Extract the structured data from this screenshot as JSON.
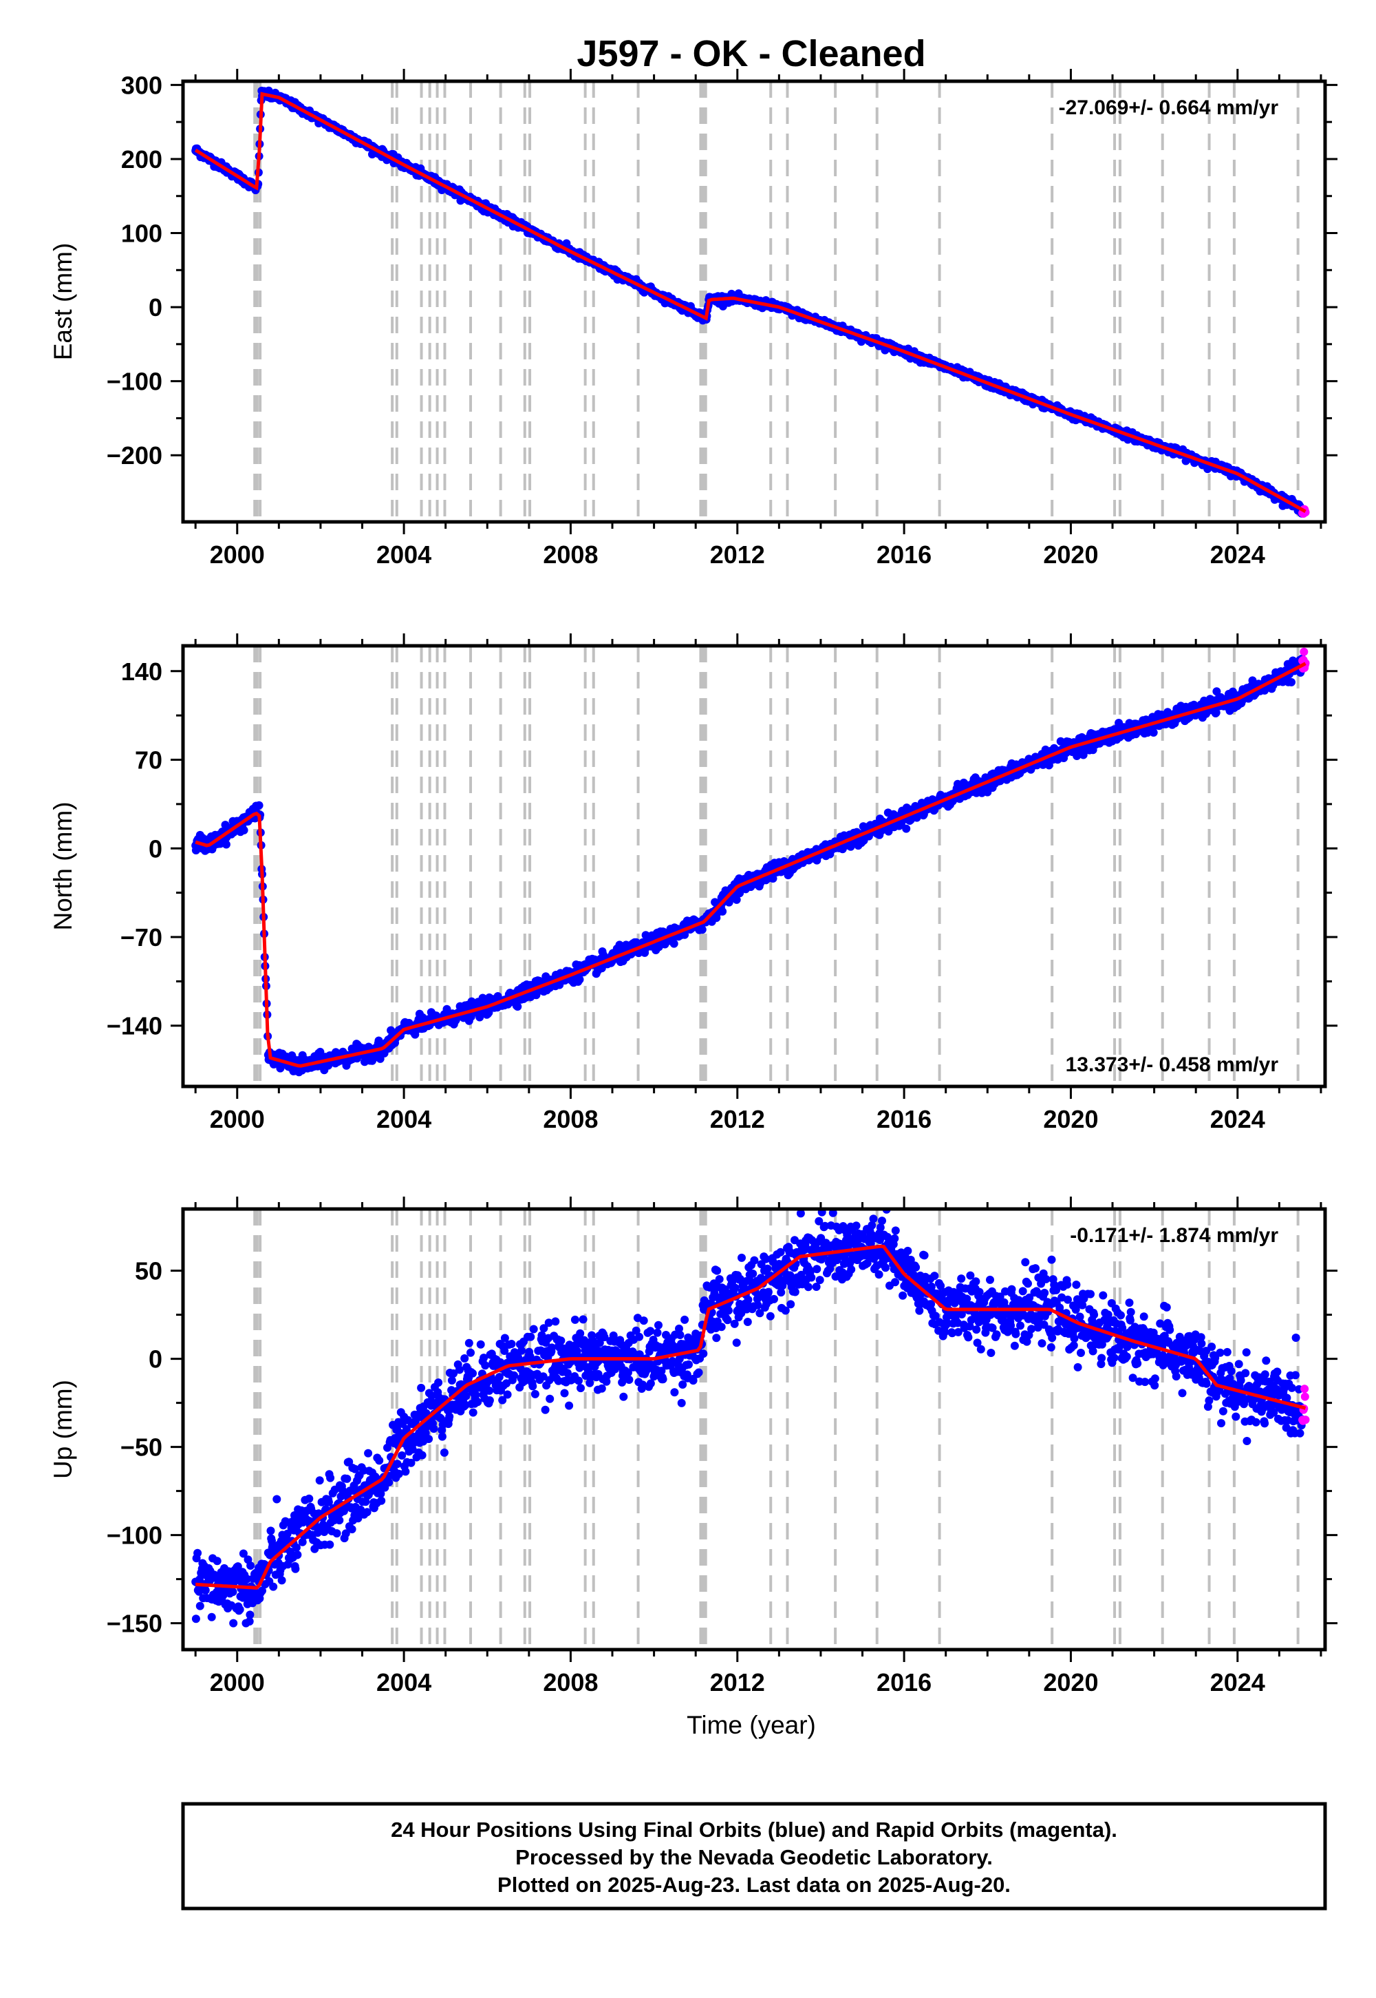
{
  "title": "J597  - OK - Cleaned",
  "x_axis_label": "Time (year)",
  "caption": {
    "line1": "24 Hour Positions Using Final Orbits (blue) and Rapid Orbits (magenta).",
    "line2": "Processed by the Nevada Geodetic Laboratory.",
    "line3": "Plotted on 2025-Aug-23. Last data on 2025-Aug-20."
  },
  "colors": {
    "final": "#0000ff",
    "rapid": "#ff00ff",
    "model": "#ff0000",
    "steps": "#c0c0c0"
  },
  "chart_data": [
    {
      "type": "scatter",
      "name": "east",
      "ylabel": "East (mm)",
      "rate": "-27.069+/- 0.664 mm/yr",
      "rate_position": "top-right",
      "xlim": [
        1998.7,
        2026.1
      ],
      "ylim": [
        -290,
        305
      ],
      "xticks": [
        2000,
        2004,
        2008,
        2012,
        2016,
        2020,
        2024
      ],
      "yticks": [
        -200,
        -100,
        0,
        100,
        200,
        300
      ],
      "x_start": 1999.0,
      "x_end": 2025.63,
      "rapid_start": 2025.55,
      "noise": 2.5,
      "trend": [
        [
          1999.0,
          212
        ],
        [
          2000.4,
          163
        ],
        [
          2000.5,
          160
        ],
        [
          2000.58,
          288
        ],
        [
          2001.0,
          283
        ],
        [
          2004.0,
          192
        ],
        [
          2008.0,
          75
        ],
        [
          2011.25,
          -15
        ],
        [
          2011.32,
          10
        ],
        [
          2011.9,
          12
        ],
        [
          2013.0,
          0
        ],
        [
          2016.0,
          -60
        ],
        [
          2020.0,
          -145
        ],
        [
          2024.0,
          -225
        ],
        [
          2025.63,
          -276
        ]
      ]
    },
    {
      "type": "scatter",
      "name": "north",
      "ylabel": "North (mm)",
      "rate": "13.373+/- 0.458 mm/yr",
      "rate_position": "bottom-right",
      "xlim": [
        1998.7,
        2026.1
      ],
      "ylim": [
        -188,
        160
      ],
      "xticks": [
        2000,
        2004,
        2008,
        2012,
        2016,
        2020,
        2024
      ],
      "yticks": [
        -140,
        -70,
        0,
        70,
        140
      ],
      "x_start": 1999.0,
      "x_end": 2025.63,
      "rapid_start": 2025.55,
      "noise": 3.0,
      "trend": [
        [
          1999.0,
          5
        ],
        [
          1999.3,
          2
        ],
        [
          2000.45,
          28
        ],
        [
          2000.55,
          25
        ],
        [
          2000.75,
          -165
        ],
        [
          2001.5,
          -172
        ],
        [
          2003.5,
          -158
        ],
        [
          2004.0,
          -143
        ],
        [
          2006.0,
          -125
        ],
        [
          2008.0,
          -100
        ],
        [
          2011.2,
          -58
        ],
        [
          2012.0,
          -30
        ],
        [
          2016.0,
          25
        ],
        [
          2020.0,
          80
        ],
        [
          2024.0,
          118
        ],
        [
          2025.63,
          146
        ]
      ]
    },
    {
      "type": "scatter",
      "name": "up",
      "ylabel": "Up (mm)",
      "rate": "-0.171+/- 1.874 mm/yr",
      "rate_position": "top-right",
      "xlim": [
        1998.7,
        2026.1
      ],
      "ylim": [
        -165,
        85
      ],
      "xticks": [
        2000,
        2004,
        2008,
        2012,
        2016,
        2020,
        2024
      ],
      "yticks": [
        -150,
        -100,
        -50,
        0,
        50
      ],
      "x_start": 1999.0,
      "x_end": 2025.63,
      "rapid_start": 2025.55,
      "noise": 9.0,
      "trend": [
        [
          1999.0,
          -128
        ],
        [
          2000.5,
          -130
        ],
        [
          2000.8,
          -115
        ],
        [
          2002.0,
          -90
        ],
        [
          2003.5,
          -68
        ],
        [
          2004.0,
          -45
        ],
        [
          2005.5,
          -15
        ],
        [
          2006.5,
          -4
        ],
        [
          2008.0,
          0
        ],
        [
          2010.0,
          0
        ],
        [
          2011.1,
          5
        ],
        [
          2011.3,
          28
        ],
        [
          2012.5,
          40
        ],
        [
          2013.5,
          58
        ],
        [
          2015.5,
          64
        ],
        [
          2016.0,
          48
        ],
        [
          2017.0,
          28
        ],
        [
          2019.5,
          28
        ],
        [
          2020.2,
          20
        ],
        [
          2021.5,
          10
        ],
        [
          2023.0,
          0
        ],
        [
          2023.5,
          -15
        ],
        [
          2025.63,
          -28
        ]
      ]
    }
  ],
  "step_epochs": [
    2000.42,
    2000.48,
    2000.55,
    2003.72,
    2003.83,
    2004.42,
    2004.62,
    2004.8,
    2004.98,
    2005.6,
    2006.32,
    2006.9,
    2007.02,
    2008.35,
    2008.55,
    2009.62,
    2011.12,
    2011.18,
    2011.24,
    2012.8,
    2013.2,
    2014.35,
    2015.35,
    2016.85,
    2019.55,
    2021.05,
    2021.18,
    2022.2,
    2023.32,
    2023.92,
    2025.45
  ]
}
